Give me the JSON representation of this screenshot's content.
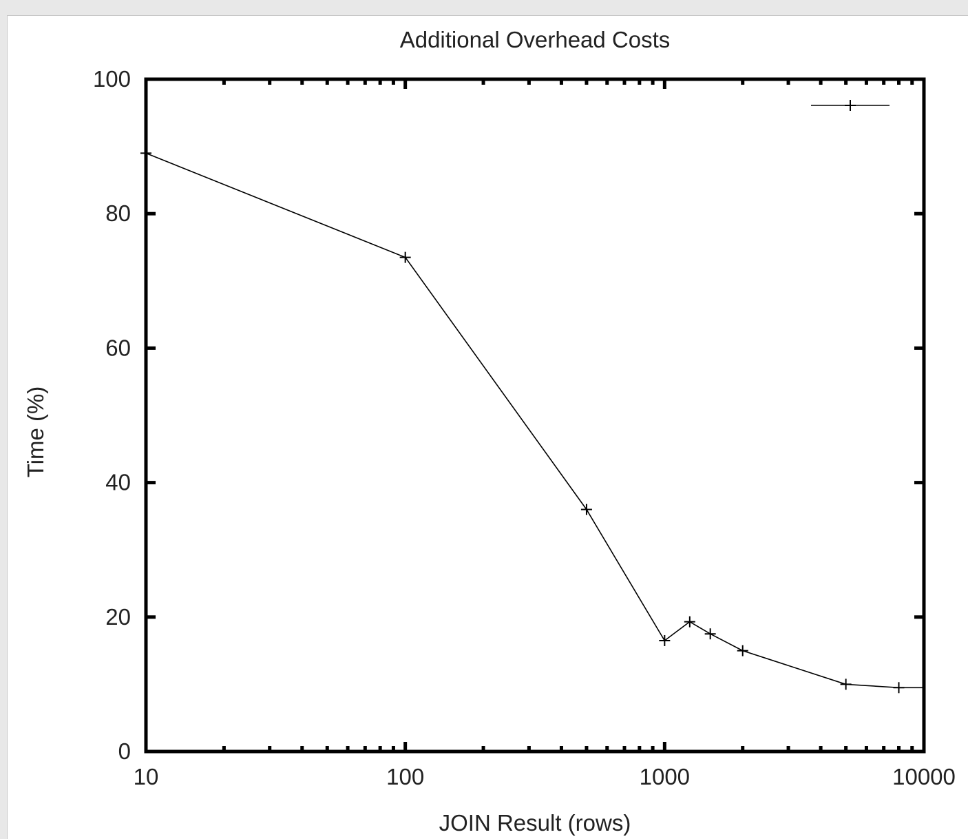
{
  "chart_data": {
    "type": "line",
    "title": "Additional Overhead Costs",
    "xlabel": "JOIN Result (rows)",
    "ylabel": "Time (%)",
    "xscale": "log",
    "xlim": [
      10,
      10000
    ],
    "ylim": [
      0,
      100
    ],
    "xticks": [
      10,
      100,
      1000,
      10000
    ],
    "yticks": [
      0,
      20,
      40,
      60,
      80,
      100
    ],
    "grid": false,
    "legend": "top-right",
    "series": [
      {
        "marker": "plus",
        "color": "#000000",
        "x": [
          10,
          100,
          500,
          1000,
          1250,
          1500,
          2000,
          5000,
          8000,
          10000
        ],
        "y": [
          89.0,
          73.5,
          36.0,
          16.5,
          19.3,
          17.5,
          15.0,
          10.0,
          9.5,
          9.5
        ]
      }
    ]
  }
}
